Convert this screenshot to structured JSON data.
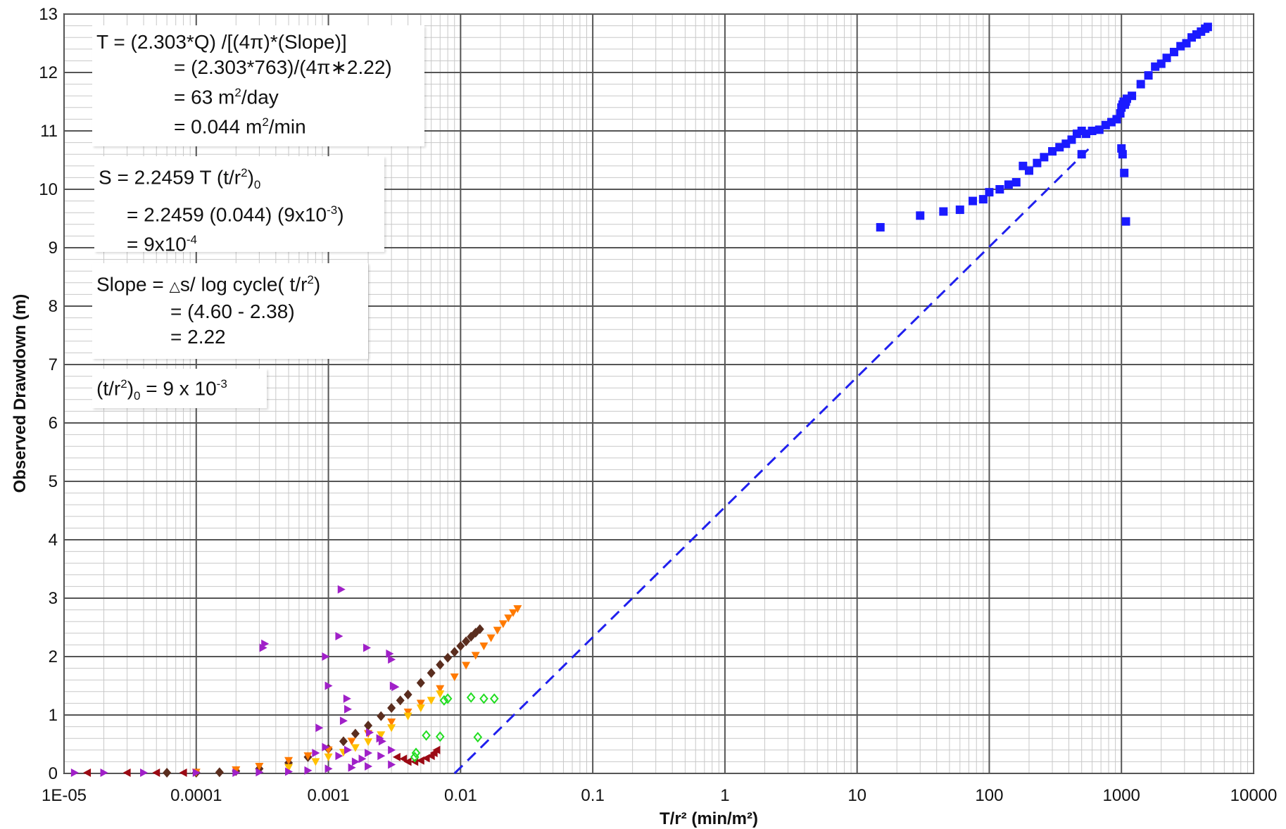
{
  "chart_data": {
    "type": "scatter",
    "xlabel": "T/r² (min/m²)",
    "ylabel": "Observed Drawdown (m)",
    "x_scale": "log",
    "xlim": [
      1e-05,
      10000
    ],
    "ylim": [
      0,
      13
    ],
    "x_ticks": [
      "1E-05",
      "0.0001",
      "0.001",
      "0.01",
      "0.1",
      "1",
      "10",
      "100",
      "1000",
      "10000"
    ],
    "y_ticks": [
      "0",
      "1",
      "2",
      "3",
      "4",
      "5",
      "6",
      "7",
      "8",
      "9",
      "10",
      "11",
      "12",
      "13"
    ],
    "grid": true,
    "colors": {
      "blue": "#1a1aff",
      "dark_brown": "#5a2d1e",
      "orange": "#ff7a00",
      "yellow": "#ffc000",
      "purple": "#a020c8",
      "maroon": "#9b0a14",
      "green": "#22dd22",
      "fit_line": "#2020ee"
    },
    "series": [
      {
        "marker": "square",
        "color": "#1a1aff",
        "x": [
          15,
          30,
          45,
          60,
          75,
          90,
          100,
          120,
          140,
          160,
          180,
          200,
          230,
          260,
          300,
          340,
          380,
          420,
          460,
          500,
          540,
          600,
          680,
          760,
          840,
          920,
          980,
          1000,
          1020,
          1040,
          1060,
          1080,
          1100,
          1200,
          1400,
          1600,
          1800,
          2000,
          2200,
          2500,
          2800,
          3100,
          3400,
          3700,
          4000,
          4300,
          4500,
          500,
          1000,
          1020,
          1050,
          1080
        ],
        "y": [
          9.35,
          9.55,
          9.62,
          9.65,
          9.8,
          9.83,
          9.95,
          10.0,
          10.08,
          10.12,
          10.4,
          10.32,
          10.45,
          10.55,
          10.65,
          10.72,
          10.78,
          10.85,
          10.95,
          11.0,
          10.95,
          11.0,
          11.02,
          11.1,
          11.15,
          11.2,
          11.3,
          11.4,
          11.45,
          11.5,
          11.45,
          11.5,
          11.55,
          11.6,
          11.8,
          11.95,
          12.1,
          12.15,
          12.25,
          12.35,
          12.45,
          12.5,
          12.6,
          12.65,
          12.7,
          12.75,
          12.78,
          10.6,
          10.7,
          10.6,
          10.28,
          9.45
        ]
      },
      {
        "marker": "diamond",
        "color": "#5a2d1e",
        "x": [
          6e-05,
          0.0001,
          0.00015,
          0.0002,
          0.0003,
          0.0005,
          0.0007,
          0.001,
          0.0013,
          0.0016,
          0.002,
          0.0025,
          0.003,
          0.0035,
          0.004,
          0.005,
          0.006,
          0.007,
          0.008,
          0.009,
          0.01,
          0.011,
          0.012,
          0.013,
          0.014
        ],
        "y": [
          0.0,
          0.01,
          0.02,
          0.04,
          0.08,
          0.18,
          0.28,
          0.42,
          0.55,
          0.68,
          0.82,
          0.98,
          1.12,
          1.25,
          1.35,
          1.55,
          1.72,
          1.86,
          1.98,
          2.08,
          2.18,
          2.26,
          2.34,
          2.41,
          2.47
        ]
      },
      {
        "marker": "triangle-down",
        "color": "#ff7a00",
        "x": [
          0.0001,
          0.0002,
          0.0003,
          0.0005,
          0.0007,
          0.001,
          0.0015,
          0.002,
          0.003,
          0.004,
          0.005,
          0.007,
          0.009,
          0.011,
          0.013,
          0.015,
          0.017,
          0.019,
          0.021,
          0.023,
          0.025,
          0.027
        ],
        "y": [
          0.02,
          0.06,
          0.12,
          0.22,
          0.3,
          0.4,
          0.55,
          0.68,
          0.88,
          1.05,
          1.2,
          1.45,
          1.65,
          1.85,
          2.02,
          2.18,
          2.32,
          2.45,
          2.56,
          2.66,
          2.75,
          2.82
        ]
      },
      {
        "marker": "triangle-down",
        "color": "#ffc000",
        "x": [
          0.0005,
          0.0008,
          0.001,
          0.0013,
          0.0016,
          0.002,
          0.0025,
          0.003,
          0.004,
          0.005,
          0.006,
          0.007
        ],
        "y": [
          0.1,
          0.2,
          0.28,
          0.36,
          0.44,
          0.54,
          0.66,
          0.78,
          0.98,
          1.12,
          1.25,
          1.36
        ]
      },
      {
        "marker": "triangle-right",
        "color": "#a020c8",
        "x": [
          1.2e-05,
          2e-05,
          4e-05,
          0.0001,
          0.0002,
          0.0003,
          0.0005,
          0.0007,
          0.001,
          0.0015,
          0.002,
          0.003,
          0.00032,
          0.00033,
          0.00085,
          0.00095,
          0.001,
          0.0012,
          0.00125,
          0.0013,
          0.00138,
          0.0014,
          0.00195,
          0.00205,
          0.00245,
          0.00255,
          0.0029,
          0.003,
          0.0031,
          0.0032,
          0.0008,
          0.00095,
          0.0012,
          0.0014,
          0.0016,
          0.0018,
          0.002,
          0.0025,
          0.003
        ],
        "y": [
          0.0,
          0.0,
          0.0,
          0.0,
          0.01,
          0.02,
          0.03,
          0.05,
          0.08,
          0.1,
          0.12,
          0.15,
          2.15,
          2.22,
          0.78,
          2.0,
          1.5,
          2.35,
          3.15,
          0.9,
          1.28,
          1.1,
          2.15,
          0.7,
          0.6,
          0.55,
          2.05,
          1.95,
          1.5,
          1.48,
          0.35,
          0.45,
          0.3,
          0.4,
          0.2,
          0.25,
          0.35,
          0.3,
          0.4
        ]
      },
      {
        "marker": "triangle-left",
        "color": "#9b0a14",
        "x": [
          1.5e-05,
          3e-05,
          5e-05,
          8e-05,
          0.0033,
          0.0037,
          0.004,
          0.0045,
          0.005,
          0.0055,
          0.006,
          0.0063,
          0.0066
        ],
        "y": [
          0.0,
          0.0,
          0.0,
          0.0,
          0.28,
          0.25,
          0.2,
          0.2,
          0.22,
          0.26,
          0.3,
          0.35,
          0.4
        ]
      },
      {
        "marker": "diamond-open",
        "color": "#22dd22",
        "x": [
          0.0075,
          0.008,
          0.012,
          0.015,
          0.018,
          0.0055,
          0.007,
          0.0135,
          0.0046,
          0.0045
        ],
        "y": [
          1.25,
          1.28,
          1.3,
          1.28,
          1.28,
          0.65,
          0.63,
          0.62,
          0.35,
          0.28
        ]
      }
    ],
    "fit_line": {
      "style": "dashed",
      "color": "#2020ee",
      "x": [
        0.009,
        600
      ],
      "y": [
        0.0,
        10.75
      ]
    },
    "annotations": {
      "transmissivity": {
        "line1": "T = (2.303*Q) /[(4π)*(Slope)]",
        "line2": "= (2.303*763)/(4π∗2.22)",
        "line3_value": "= 63 m",
        "line3_sup": "2",
        "line3_unit": "/day",
        "line4_value": "= 0.044 m",
        "line4_sup": "2",
        "line4_unit": "/min"
      },
      "storativity": {
        "line1_main": "S = 2.2459 T (t/r",
        "line1_sup": "2",
        "line1_close": ")",
        "line1_sub": "0",
        "line2_main": "= 2.2459 (0.044) (9x10",
        "line2_sup": "-3",
        "line2_close": ")",
        "line3_main": "= 9x10",
        "line3_sup": "-4"
      },
      "slope": {
        "line1_main": "Slope = ",
        "line1_delta": "△",
        "line1_rest": "s/ log cycle( t/r",
        "line1_sup": "2",
        "line1_close": ")",
        "line2": "= (4.60 - 2.38)",
        "line3": "= 2.22"
      },
      "intercept": {
        "open": "(t/r",
        "sup": "2",
        "close": ")",
        "sub": "0",
        "value": " = 9 x 10",
        "value_sup": "-3"
      }
    }
  }
}
